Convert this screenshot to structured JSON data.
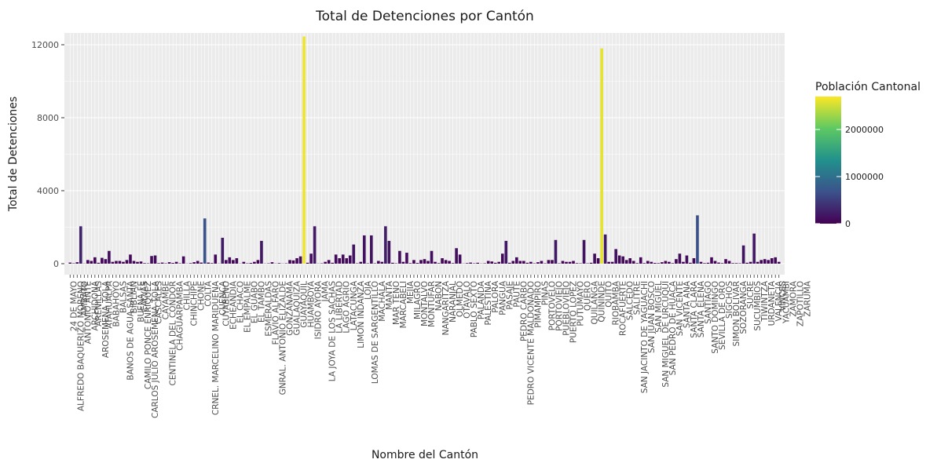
{
  "chart_data": {
    "type": "bar",
    "title": "Total de Detenciones por Cantón",
    "xlabel": "Nombre del Cantón",
    "ylabel": "Total de Detenciones",
    "ylim": [
      0,
      13000
    ],
    "yticks": [
      0,
      4000,
      8000,
      12000
    ],
    "grid": true,
    "legend": {
      "title": "Población Cantonal",
      "placement": "right",
      "type": "colorbar",
      "range": [
        0,
        2700000
      ],
      "ticks": [
        0,
        1000000,
        2000000
      ],
      "colors": [
        "#440154",
        "#3b528b",
        "#21918c",
        "#5ec962",
        "#fde725"
      ]
    },
    "bars": [
      {
        "v": 60,
        "p": 30000
      },
      {
        "v": 20,
        "p": 20000
      },
      {
        "v": 80,
        "p": 40000
      },
      {
        "v": 2050,
        "p": 300000
      },
      {
        "v": 10,
        "p": 10000
      },
      {
        "v": 200,
        "p": 40000
      },
      {
        "v": 150,
        "p": 40000
      },
      {
        "v": 350,
        "p": 50000
      },
      {
        "v": 50,
        "p": 10000
      },
      {
        "v": 320,
        "p": 60000
      },
      {
        "v": 250,
        "p": 60000
      },
      {
        "v": 700,
        "p": 110000
      },
      {
        "v": 100,
        "p": 20000
      },
      {
        "v": 150,
        "p": 30000
      },
      {
        "v": 150,
        "p": 20000
      },
      {
        "v": 100,
        "p": 20000
      },
      {
        "v": 200,
        "p": 30000
      },
      {
        "v": 500,
        "p": 70000
      },
      {
        "v": 150,
        "p": 30000
      },
      {
        "v": 100,
        "p": 30000
      },
      {
        "v": 120,
        "p": 20000
      },
      {
        "v": 30,
        "p": 10000
      },
      {
        "v": 20,
        "p": 10000
      },
      {
        "v": 420,
        "p": 100000
      },
      {
        "v": 450,
        "p": 80000
      },
      {
        "v": 30,
        "p": 10000
      },
      {
        "v": 60,
        "p": 20000
      },
      {
        "v": 20,
        "p": 10000
      },
      {
        "v": 80,
        "p": 20000
      },
      {
        "v": 40,
        "p": 10000
      },
      {
        "v": 100,
        "p": 20000
      },
      {
        "v": 20,
        "p": 10000
      },
      {
        "v": 400,
        "p": 60000
      },
      {
        "v": 10,
        "p": 10000
      },
      {
        "v": 30,
        "p": 10000
      },
      {
        "v": 80,
        "p": 20000
      },
      {
        "v": 150,
        "p": 30000
      },
      {
        "v": 60,
        "p": 20000
      },
      {
        "v": 2480,
        "p": 700000
      },
      {
        "v": 60,
        "p": 20000
      },
      {
        "v": 30,
        "p": 10000
      },
      {
        "v": 500,
        "p": 60000
      },
      {
        "v": 10,
        "p": 10000
      },
      {
        "v": 1420,
        "p": 200000
      },
      {
        "v": 200,
        "p": 40000
      },
      {
        "v": 350,
        "p": 80000
      },
      {
        "v": 200,
        "p": 40000
      },
      {
        "v": 300,
        "p": 70000
      },
      {
        "v": 10,
        "p": 10000
      },
      {
        "v": 100,
        "p": 20000
      },
      {
        "v": 20,
        "p": 10000
      },
      {
        "v": 40,
        "p": 10000
      },
      {
        "v": 100,
        "p": 20000
      },
      {
        "v": 200,
        "p": 30000
      },
      {
        "v": 1250,
        "p": 200000
      },
      {
        "v": 10,
        "p": 10000
      },
      {
        "v": 20,
        "p": 10000
      },
      {
        "v": 80,
        "p": 20000
      },
      {
        "v": 10,
        "p": 10000
      },
      {
        "v": 30,
        "p": 10000
      },
      {
        "v": 10,
        "p": 10000
      },
      {
        "v": 20,
        "p": 10000
      },
      {
        "v": 200,
        "p": 30000
      },
      {
        "v": 180,
        "p": 30000
      },
      {
        "v": 300,
        "p": 60000
      },
      {
        "v": 400,
        "p": 90000
      },
      {
        "v": 12450,
        "p": 2650000
      },
      {
        "v": 50,
        "p": 10000
      },
      {
        "v": 550,
        "p": 100000
      },
      {
        "v": 2050,
        "p": 200000
      },
      {
        "v": 10,
        "p": 10000
      },
      {
        "v": 20,
        "p": 10000
      },
      {
        "v": 100,
        "p": 20000
      },
      {
        "v": 200,
        "p": 30000
      },
      {
        "v": 50,
        "p": 10000
      },
      {
        "v": 500,
        "p": 80000
      },
      {
        "v": 300,
        "p": 60000
      },
      {
        "v": 500,
        "p": 90000
      },
      {
        "v": 300,
        "p": 60000
      },
      {
        "v": 450,
        "p": 80000
      },
      {
        "v": 1050,
        "p": 150000
      },
      {
        "v": 20,
        "p": 10000
      },
      {
        "v": 100,
        "p": 20000
      },
      {
        "v": 1550,
        "p": 150000
      },
      {
        "v": 20,
        "p": 10000
      },
      {
        "v": 1550,
        "p": 150000
      },
      {
        "v": 20,
        "p": 10000
      },
      {
        "v": 150,
        "p": 30000
      },
      {
        "v": 100,
        "p": 20000
      },
      {
        "v": 2050,
        "p": 250000
      },
      {
        "v": 1250,
        "p": 150000
      },
      {
        "v": 50,
        "p": 10000
      },
      {
        "v": 20,
        "p": 10000
      },
      {
        "v": 700,
        "p": 100000
      },
      {
        "v": 100,
        "p": 20000
      },
      {
        "v": 600,
        "p": 100000
      },
      {
        "v": 30,
        "p": 10000
      },
      {
        "v": 200,
        "p": 40000
      },
      {
        "v": 40,
        "p": 10000
      },
      {
        "v": 200,
        "p": 40000
      },
      {
        "v": 250,
        "p": 40000
      },
      {
        "v": 150,
        "p": 30000
      },
      {
        "v": 700,
        "p": 110000
      },
      {
        "v": 100,
        "p": 20000
      },
      {
        "v": 30,
        "p": 10000
      },
      {
        "v": 300,
        "p": 60000
      },
      {
        "v": 200,
        "p": 40000
      },
      {
        "v": 150,
        "p": 30000
      },
      {
        "v": 30,
        "p": 10000
      },
      {
        "v": 850,
        "p": 120000
      },
      {
        "v": 500,
        "p": 80000
      },
      {
        "v": 10,
        "p": 10000
      },
      {
        "v": 30,
        "p": 10000
      },
      {
        "v": 60,
        "p": 20000
      },
      {
        "v": 20,
        "p": 10000
      },
      {
        "v": 50,
        "p": 10000
      },
      {
        "v": 10,
        "p": 10000
      },
      {
        "v": 20,
        "p": 10000
      },
      {
        "v": 150,
        "p": 30000
      },
      {
        "v": 120,
        "p": 20000
      },
      {
        "v": 50,
        "p": 10000
      },
      {
        "v": 100,
        "p": 20000
      },
      {
        "v": 550,
        "p": 90000
      },
      {
        "v": 1250,
        "p": 180000
      },
      {
        "v": 50,
        "p": 10000
      },
      {
        "v": 150,
        "p": 30000
      },
      {
        "v": 350,
        "p": 60000
      },
      {
        "v": 150,
        "p": 30000
      },
      {
        "v": 150,
        "p": 30000
      },
      {
        "v": 50,
        "p": 10000
      },
      {
        "v": 100,
        "p": 20000
      },
      {
        "v": 20,
        "p": 10000
      },
      {
        "v": 80,
        "p": 20000
      },
      {
        "v": 150,
        "p": 30000
      },
      {
        "v": 20,
        "p": 10000
      },
      {
        "v": 200,
        "p": 40000
      },
      {
        "v": 200,
        "p": 40000
      },
      {
        "v": 1300,
        "p": 200000
      },
      {
        "v": 20,
        "p": 10000
      },
      {
        "v": 150,
        "p": 30000
      },
      {
        "v": 100,
        "p": 20000
      },
      {
        "v": 100,
        "p": 20000
      },
      {
        "v": 150,
        "p": 30000
      },
      {
        "v": 30,
        "p": 10000
      },
      {
        "v": 20,
        "p": 10000
      },
      {
        "v": 1300,
        "p": 150000
      },
      {
        "v": 20,
        "p": 10000
      },
      {
        "v": 50,
        "p": 10000
      },
      {
        "v": 550,
        "p": 100000
      },
      {
        "v": 300,
        "p": 50000
      },
      {
        "v": 11800,
        "p": 2600000
      },
      {
        "v": 1600,
        "p": 200000
      },
      {
        "v": 100,
        "p": 20000
      },
      {
        "v": 100,
        "p": 20000
      },
      {
        "v": 800,
        "p": 130000
      },
      {
        "v": 450,
        "p": 80000
      },
      {
        "v": 400,
        "p": 80000
      },
      {
        "v": 200,
        "p": 40000
      },
      {
        "v": 300,
        "p": 60000
      },
      {
        "v": 150,
        "p": 30000
      },
      {
        "v": 30,
        "p": 10000
      },
      {
        "v": 350,
        "p": 60000
      },
      {
        "v": 30,
        "p": 10000
      },
      {
        "v": 150,
        "p": 30000
      },
      {
        "v": 100,
        "p": 20000
      },
      {
        "v": 40,
        "p": 10000
      },
      {
        "v": 30,
        "p": 10000
      },
      {
        "v": 80,
        "p": 20000
      },
      {
        "v": 150,
        "p": 30000
      },
      {
        "v": 100,
        "p": 20000
      },
      {
        "v": 30,
        "p": 10000
      },
      {
        "v": 250,
        "p": 50000
      },
      {
        "v": 550,
        "p": 90000
      },
      {
        "v": 100,
        "p": 20000
      },
      {
        "v": 450,
        "p": 80000
      },
      {
        "v": 50,
        "p": 10000
      },
      {
        "v": 300,
        "p": 60000
      },
      {
        "v": 2650,
        "p": 650000
      },
      {
        "v": 100,
        "p": 20000
      },
      {
        "v": 30,
        "p": 10000
      },
      {
        "v": 50,
        "p": 10000
      },
      {
        "v": 350,
        "p": 60000
      },
      {
        "v": 150,
        "p": 30000
      },
      {
        "v": 60,
        "p": 20000
      },
      {
        "v": 30,
        "p": 10000
      },
      {
        "v": 250,
        "p": 40000
      },
      {
        "v": 150,
        "p": 30000
      },
      {
        "v": 30,
        "p": 10000
      },
      {
        "v": 30,
        "p": 10000
      },
      {
        "v": 20,
        "p": 10000
      },
      {
        "v": 1000,
        "p": 150000
      },
      {
        "v": 50,
        "p": 10000
      },
      {
        "v": 100,
        "p": 20000
      },
      {
        "v": 1650,
        "p": 200000
      },
      {
        "v": 100,
        "p": 20000
      },
      {
        "v": 200,
        "p": 40000
      },
      {
        "v": 250,
        "p": 50000
      },
      {
        "v": 200,
        "p": 40000
      },
      {
        "v": 300,
        "p": 60000
      },
      {
        "v": 350,
        "p": 60000
      },
      {
        "v": 100,
        "p": 20000
      }
    ],
    "x_tick_labels": [
      {
        "i": 1,
        "label": "24 DE MAYO"
      },
      {
        "i": 3,
        "label": "ALFREDO BAQUERIZO MORENO"
      },
      {
        "i": 4,
        "label": "AMBATO"
      },
      {
        "i": 5,
        "label": "ANTONIO ANTE"
      },
      {
        "i": 7,
        "label": "ARCHIDONA"
      },
      {
        "i": 8,
        "label": "ARENILLAS"
      },
      {
        "i": 10,
        "label": "AROSEMENA TOLA"
      },
      {
        "i": 11,
        "label": "ATAHUALPA"
      },
      {
        "i": 13,
        "label": "BABAHOYO"
      },
      {
        "i": 15,
        "label": "BALSAS"
      },
      {
        "i": 17,
        "label": "BANOS DE AGUA SANTA"
      },
      {
        "i": 18,
        "label": "BIBLIAN"
      },
      {
        "i": 20,
        "label": "BUENA FE"
      },
      {
        "i": 21,
        "label": "CALVAS"
      },
      {
        "i": 22,
        "label": "CAMILO PONCE ENRIQUEZ"
      },
      {
        "i": 24,
        "label": "CARLOS JULIO AROSEMENA TOLA"
      },
      {
        "i": 25,
        "label": "CASCALES"
      },
      {
        "i": 27,
        "label": "CAYAMBE"
      },
      {
        "i": 29,
        "label": "CENTINELA DEL CONDOR"
      },
      {
        "i": 31,
        "label": "CHAGUARPAMBA"
      },
      {
        "i": 33,
        "label": "CHILLA"
      },
      {
        "i": 35,
        "label": "CHINCHIPE"
      },
      {
        "i": 37,
        "label": "CHONE"
      },
      {
        "i": 39,
        "label": "COLTA"
      },
      {
        "i": 41,
        "label": "CRNEL. MARCELINO MARIDUENA"
      },
      {
        "i": 43,
        "label": "CUENCA"
      },
      {
        "i": 44,
        "label": "CUYABENO"
      },
      {
        "i": 46,
        "label": "ECHEANDIA"
      },
      {
        "i": 48,
        "label": "EL CHACO"
      },
      {
        "i": 50,
        "label": "EL EMPALME"
      },
      {
        "i": 52,
        "label": "EL GUABO"
      },
      {
        "i": 54,
        "label": "EL TAMBO"
      },
      {
        "i": 56,
        "label": "ESMERALDAS"
      },
      {
        "i": 58,
        "label": "FLAVIO ALFARO"
      },
      {
        "i": 60,
        "label": "GNRAL. ANTONIO ELIZALDE"
      },
      {
        "i": 62,
        "label": "GONZANAMA"
      },
      {
        "i": 64,
        "label": "GUALAQUIZA"
      },
      {
        "i": 66,
        "label": "GUAYAQUIL"
      },
      {
        "i": 68,
        "label": "HUAMBOYA"
      },
      {
        "i": 70,
        "label": "ISIDRO AYORA"
      },
      {
        "i": 72,
        "label": "JAMA"
      },
      {
        "i": 74,
        "label": "LA JOYA DE LOS SACHAS"
      },
      {
        "i": 76,
        "label": "LA LIBERTAD"
      },
      {
        "i": 78,
        "label": "LAGO AGRIO"
      },
      {
        "i": 80,
        "label": "LATACUNGA"
      },
      {
        "i": 82,
        "label": "LIMON INDANZA"
      },
      {
        "i": 84,
        "label": "LOJA"
      },
      {
        "i": 86,
        "label": "LOMAS DE SARGENTILLO"
      },
      {
        "i": 88,
        "label": "MACHALA"
      },
      {
        "i": 90,
        "label": "MANTA"
      },
      {
        "i": 92,
        "label": "MAR TENO"
      },
      {
        "i": 94,
        "label": "MARCABELI"
      },
      {
        "i": 96,
        "label": "MEJIA"
      },
      {
        "i": 98,
        "label": "MILAGRO"
      },
      {
        "i": 100,
        "label": "MONTALVO"
      },
      {
        "i": 102,
        "label": "MONTUFAR"
      },
      {
        "i": 104,
        "label": "NABON"
      },
      {
        "i": 106,
        "label": "NANGARITZA"
      },
      {
        "i": 108,
        "label": "NARANJAL"
      },
      {
        "i": 110,
        "label": "OLMEDO"
      },
      {
        "i": 112,
        "label": "OTAVALO"
      },
      {
        "i": 114,
        "label": "PABLO SEXTO"
      },
      {
        "i": 116,
        "label": "PALANDA"
      },
      {
        "i": 118,
        "label": "PALESTINA"
      },
      {
        "i": 120,
        "label": "PALORA"
      },
      {
        "i": 122,
        "label": "PANGUA"
      },
      {
        "i": 124,
        "label": "PASAJE"
      },
      {
        "i": 126,
        "label": "PAUTE"
      },
      {
        "i": 128,
        "label": "PEDRO CARBO"
      },
      {
        "i": 130,
        "label": "PEDRO VICENTE MALDONADO"
      },
      {
        "i": 132,
        "label": "PIMAMPIRO"
      },
      {
        "i": 134,
        "label": "PINAS"
      },
      {
        "i": 136,
        "label": "PORTOVELO"
      },
      {
        "i": 138,
        "label": "PORTOVIEJO"
      },
      {
        "i": 140,
        "label": "PUEBLOVIEJO"
      },
      {
        "i": 142,
        "label": "PUERTO LOPEZ"
      },
      {
        "i": 144,
        "label": "PUTUMAYO"
      },
      {
        "i": 146,
        "label": "QUERO"
      },
      {
        "i": 148,
        "label": "QUILANGA"
      },
      {
        "i": 150,
        "label": "QUININDE"
      },
      {
        "i": 152,
        "label": "QUITO"
      },
      {
        "i": 154,
        "label": "RIOBAMBA"
      },
      {
        "i": 156,
        "label": "ROCAFUERTE"
      },
      {
        "i": 158,
        "label": "SALCEDO"
      },
      {
        "i": 160,
        "label": "SALITRE"
      },
      {
        "i": 162,
        "label": "SAN JACINTO DE YAGUACHI"
      },
      {
        "i": 164,
        "label": "SAN JUAN BOSCO"
      },
      {
        "i": 166,
        "label": "SAN MIGUEL"
      },
      {
        "i": 168,
        "label": "SAN MIGUEL DE URCUQUI"
      },
      {
        "i": 170,
        "label": "SAN PEDRO DE HUACA"
      },
      {
        "i": 172,
        "label": "SAN VICENTE"
      },
      {
        "i": 174,
        "label": "SANTA ANA"
      },
      {
        "i": 176,
        "label": "SANTA CLARA"
      },
      {
        "i": 178,
        "label": "SANTA ELENA"
      },
      {
        "i": 180,
        "label": "SANTIAGO"
      },
      {
        "i": 182,
        "label": "SANTO DOMINGO"
      },
      {
        "i": 184,
        "label": "SEVILLA DE ORO"
      },
      {
        "i": 186,
        "label": "SIGCHOS"
      },
      {
        "i": 188,
        "label": "SIMON BOLIVAR"
      },
      {
        "i": 190,
        "label": "SOZORANGA"
      },
      {
        "i": 192,
        "label": "SUCRE"
      },
      {
        "i": 194,
        "label": "SUCUMBIOS"
      },
      {
        "i": 196,
        "label": "TIWINTZA"
      },
      {
        "i": 198,
        "label": "URDANETA"
      },
      {
        "i": 200,
        "label": "VALENCIA"
      },
      {
        "i": 201,
        "label": "VINCES"
      },
      {
        "i": 202,
        "label": "YACUAMBI"
      },
      {
        "i": 204,
        "label": "ZAMORA"
      },
      {
        "i": 206,
        "label": "ZAPOTILLO"
      },
      {
        "i": 208,
        "label": "ZARUMA"
      }
    ]
  }
}
